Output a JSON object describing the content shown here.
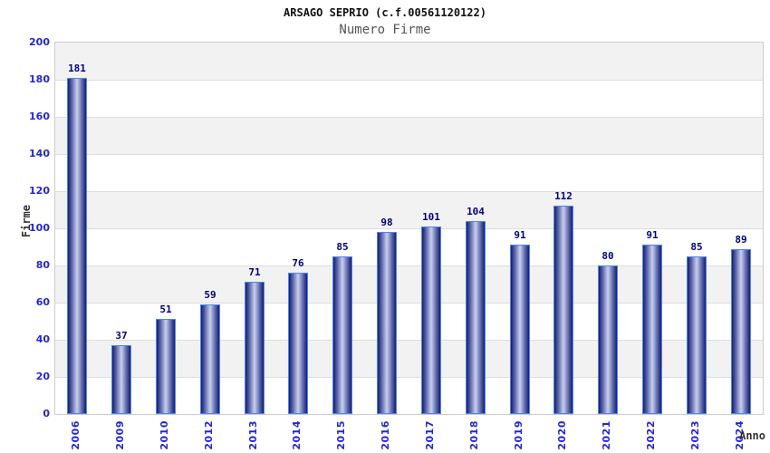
{
  "header": {
    "title": "ARSAGO SEPRIO (c.f.00561120122)",
    "subtitle": "Numero Firme"
  },
  "chart_data": {
    "type": "bar",
    "title": "ARSAGO SEPRIO (c.f.00561120122)",
    "subtitle": "Numero Firme",
    "xlabel": "Anno",
    "ylabel": "Firme",
    "categories": [
      "2006",
      "2009",
      "2010",
      "2012",
      "2013",
      "2014",
      "2015",
      "2016",
      "2017",
      "2018",
      "2019",
      "2020",
      "2021",
      "2022",
      "2023",
      "2024"
    ],
    "values": [
      181,
      37,
      51,
      59,
      71,
      76,
      85,
      98,
      101,
      104,
      91,
      112,
      80,
      91,
      85,
      89
    ],
    "ylim": [
      0,
      200
    ],
    "ytick_step": 20,
    "yticks": [
      0,
      20,
      40,
      60,
      80,
      100,
      120,
      140,
      160,
      180,
      200
    ],
    "grid": "horizontal gridlines every 20 with alternating gray/white bands, gray band at top",
    "legend": "none",
    "bar_value_labels": true,
    "colors": {
      "title": "#111111",
      "subtitle": "#555555",
      "axis_title": "#333333",
      "tick_label": "#2525d4",
      "value_label": "#00007f",
      "bar_border": "#4b87f2",
      "bar_edge": "#191d6b",
      "bar_mid": "#5560a8",
      "bar_center": "#c9d0ec",
      "band_gray": "#f2f2f2",
      "band_white": "#ffffff",
      "gridline": "#dddddd",
      "plot_border": "#cccccc"
    }
  }
}
